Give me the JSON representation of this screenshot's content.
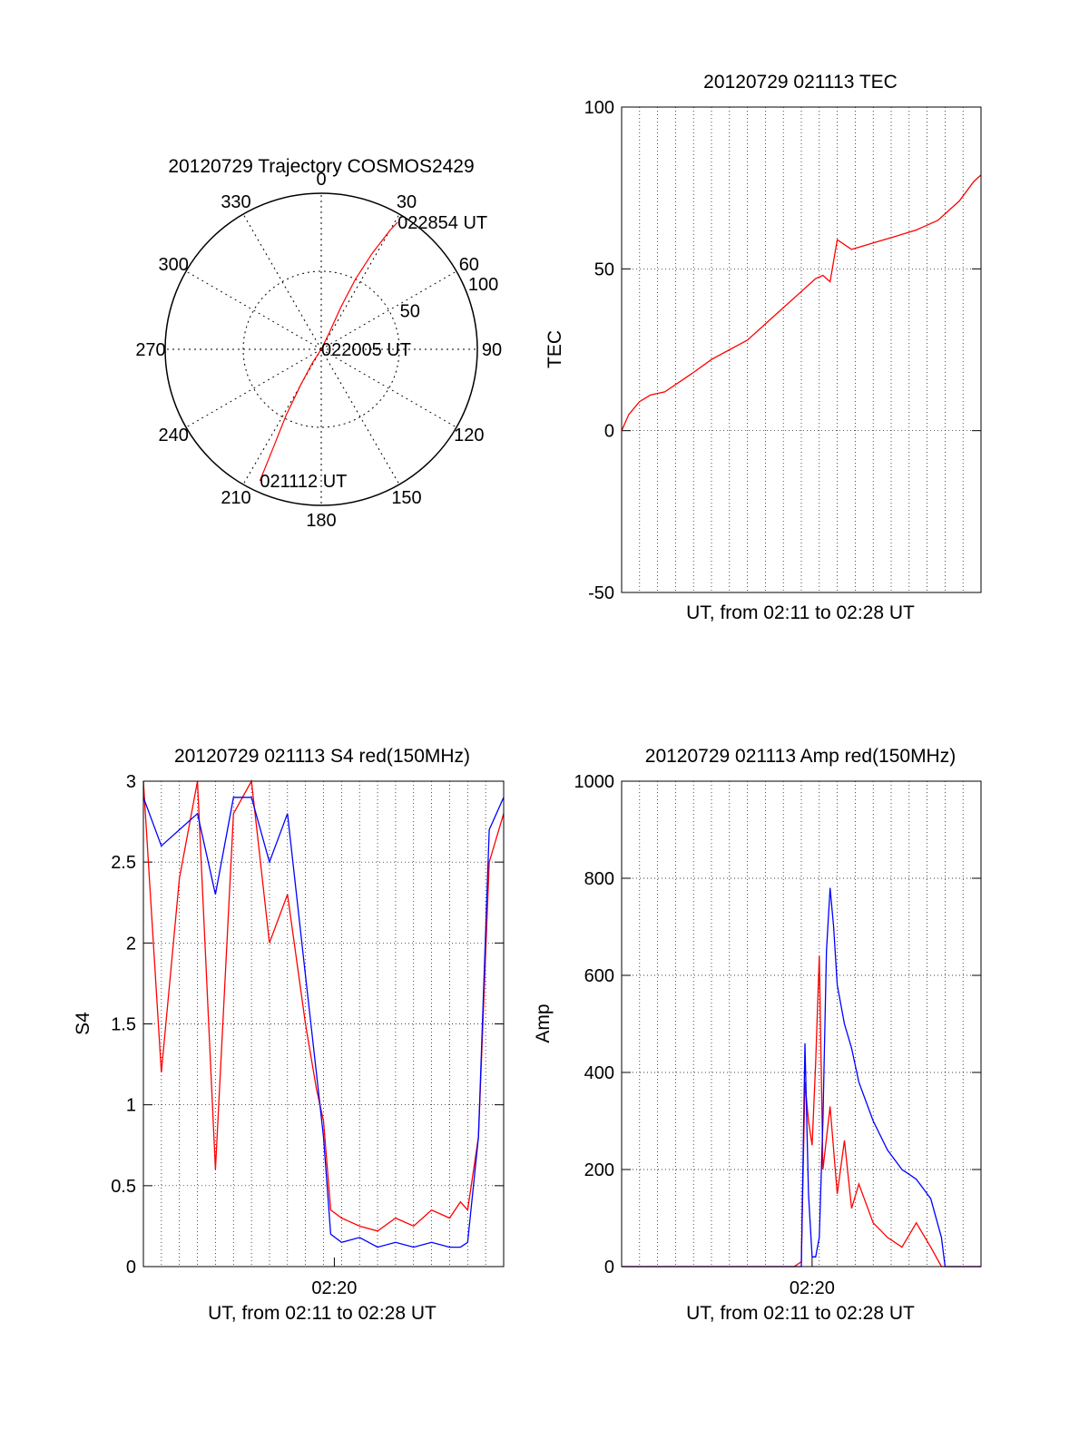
{
  "figure": {
    "colors": {
      "red_series": "#ff0000",
      "blue_series": "#0000ff",
      "axes": "#000000",
      "background": "#ffffff"
    }
  },
  "chart_data": [
    {
      "id": "polar",
      "type": "scatter",
      "projection": "polar",
      "title": "20120729 Trajectory COSMOS2429",
      "angle_ticks": [
        "0",
        "30",
        "60",
        "90",
        "120",
        "150",
        "180",
        "210",
        "240",
        "270",
        "300",
        "330"
      ],
      "angles_deg": [
        0,
        30,
        60,
        90,
        120,
        150,
        180,
        210,
        240,
        270,
        300,
        330
      ],
      "radial_ticks": [
        "50",
        "100"
      ],
      "radial_values": [
        50,
        100
      ],
      "grid": true,
      "trajectory": {
        "angle_unit": "deg",
        "points": [
          [
            205,
            93
          ],
          [
            206,
            70
          ],
          [
            208,
            48
          ],
          [
            210,
            26
          ],
          [
            213,
            10
          ],
          [
            0,
            0
          ],
          [
            26,
            12
          ],
          [
            25,
            30
          ],
          [
            26,
            50
          ],
          [
            28,
            70
          ],
          [
            30,
            88
          ],
          [
            31,
            95
          ]
        ]
      },
      "annotations": [
        {
          "text": "022854 UT",
          "angle": 31,
          "r": 95
        },
        {
          "text": "022005 UT",
          "angle": 0,
          "r": 0
        },
        {
          "text": "021112 UT",
          "angle": 205,
          "r": 93
        }
      ]
    },
    {
      "id": "tec",
      "type": "line",
      "title": "20120729 021113 TEC",
      "xlabel": "UT, from 02:11 to 02:28 UT",
      "ylabel": "TEC",
      "xlim": [
        0,
        1
      ],
      "ylim": [
        -50,
        100
      ],
      "yticks": [
        -50,
        0,
        50,
        100
      ],
      "x_tick_labels": [],
      "grid": true,
      "series": [
        {
          "color": "#ff0000",
          "x": [
            0,
            0.02,
            0.05,
            0.08,
            0.12,
            0.16,
            0.2,
            0.25,
            0.3,
            0.35,
            0.4,
            0.45,
            0.5,
            0.54,
            0.56,
            0.58,
            0.6,
            0.64,
            0.7,
            0.76,
            0.82,
            0.88,
            0.94,
            0.98,
            1.0
          ],
          "y": [
            0,
            5,
            9,
            11,
            12,
            15,
            18,
            22,
            25,
            28,
            33,
            38,
            43,
            47,
            48,
            46,
            59,
            56,
            58,
            60,
            62,
            65,
            71,
            77,
            79
          ]
        }
      ]
    },
    {
      "id": "s4",
      "type": "line",
      "title": "20120729 021113 S4 red(150MHz)",
      "xlabel": "UT, from 02:11 to 02:28 UT",
      "ylabel": "S4",
      "xlim": [
        0,
        1
      ],
      "ylim": [
        0,
        3
      ],
      "yticks": [
        0,
        0.5,
        1,
        1.5,
        2,
        2.5,
        3
      ],
      "ytick_labels": [
        "0",
        "0.5",
        "1",
        "1.5",
        "2",
        "2.5",
        "3"
      ],
      "x_tick_labels": [
        {
          "text": "02:20",
          "x": 0.53
        }
      ],
      "grid": true,
      "series": [
        {
          "color": "#ff0000",
          "x": [
            0.0,
            0.05,
            0.1,
            0.15,
            0.2,
            0.25,
            0.3,
            0.35,
            0.4,
            0.45,
            0.48,
            0.5,
            0.52,
            0.55,
            0.6,
            0.65,
            0.7,
            0.75,
            0.8,
            0.85,
            0.88,
            0.9,
            0.93,
            0.96,
            1.0
          ],
          "y": [
            3.0,
            1.2,
            2.4,
            3.0,
            0.6,
            2.8,
            3.0,
            2.0,
            2.3,
            1.5,
            1.1,
            0.9,
            0.35,
            0.3,
            0.25,
            0.22,
            0.3,
            0.25,
            0.35,
            0.3,
            0.4,
            0.35,
            0.8,
            2.5,
            2.8
          ]
        },
        {
          "color": "#0000ff",
          "x": [
            0.0,
            0.05,
            0.1,
            0.15,
            0.2,
            0.25,
            0.3,
            0.35,
            0.4,
            0.45,
            0.48,
            0.5,
            0.52,
            0.55,
            0.6,
            0.65,
            0.7,
            0.75,
            0.8,
            0.85,
            0.88,
            0.9,
            0.93,
            0.96,
            1.0
          ],
          "y": [
            2.9,
            2.6,
            2.7,
            2.8,
            2.3,
            2.9,
            2.9,
            2.5,
            2.8,
            1.8,
            1.2,
            0.8,
            0.2,
            0.15,
            0.18,
            0.12,
            0.15,
            0.12,
            0.15,
            0.12,
            0.12,
            0.15,
            0.8,
            2.7,
            2.9
          ]
        }
      ]
    },
    {
      "id": "amp",
      "type": "line",
      "title": "20120729 021113 Amp red(150MHz)",
      "xlabel": "UT, from 02:11 to 02:28 UT",
      "ylabel": "Amp",
      "xlim": [
        0,
        1
      ],
      "ylim": [
        0,
        1000
      ],
      "yticks": [
        0,
        200,
        400,
        600,
        800,
        1000
      ],
      "x_tick_labels": [
        {
          "text": "02:20",
          "x": 0.53
        }
      ],
      "grid": true,
      "series": [
        {
          "color": "#ff0000",
          "x": [
            0.0,
            0.48,
            0.5,
            0.51,
            0.52,
            0.53,
            0.54,
            0.55,
            0.56,
            0.58,
            0.6,
            0.62,
            0.64,
            0.66,
            0.7,
            0.74,
            0.78,
            0.82,
            0.86,
            0.89,
            1.0
          ],
          "y": [
            0,
            0,
            10,
            380,
            300,
            250,
            420,
            640,
            200,
            330,
            150,
            260,
            120,
            170,
            90,
            60,
            40,
            90,
            40,
            0,
            0
          ]
        },
        {
          "color": "#0000ff",
          "x": [
            0.0,
            0.5,
            0.51,
            0.52,
            0.53,
            0.54,
            0.55,
            0.56,
            0.57,
            0.58,
            0.59,
            0.6,
            0.62,
            0.64,
            0.66,
            0.7,
            0.74,
            0.78,
            0.8,
            0.82,
            0.86,
            0.89,
            0.9,
            1.0
          ],
          "y": [
            0,
            0,
            460,
            150,
            20,
            20,
            60,
            300,
            650,
            780,
            700,
            580,
            500,
            450,
            380,
            300,
            240,
            200,
            190,
            180,
            140,
            60,
            0,
            0
          ]
        }
      ]
    }
  ]
}
